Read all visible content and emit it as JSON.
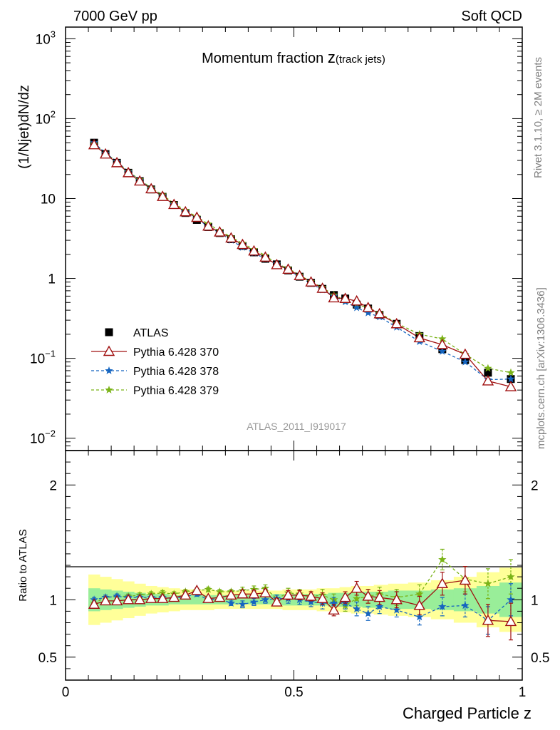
{
  "header": {
    "energy": "7000 GeV pp",
    "category": "Soft QCD"
  },
  "side_labels": {
    "rivet": "Rivet 3.1.10, ≥ 2M events",
    "mcplots": "mcplots.cern.ch [arXiv:1306.3436]"
  },
  "analysis_tag": "ATLAS_2011_I919017",
  "chart_data": [
    {
      "type": "scatter",
      "title_main": "Momentum fraction ",
      "title_z": "z",
      "title_sub": "(track jets)",
      "xlabel": "Charged Particle z",
      "ylabel": "(1/Njet)dN/dz",
      "yscale": "log",
      "xlim": [
        0,
        1
      ],
      "ylim": [
        0.007,
        1400
      ],
      "y_ticks": [
        {
          "label": "10",
          "exp": "−2"
        },
        {
          "label": "10",
          "exp": "−1"
        },
        {
          "label": "1",
          "exp": ""
        },
        {
          "label": "10",
          "exp": ""
        },
        {
          "label": "10",
          "exp": "2"
        },
        {
          "label": "10",
          "exp": "3"
        }
      ],
      "legend_position": "bottom-left",
      "x": [
        0.0625,
        0.0875,
        0.1125,
        0.1375,
        0.1625,
        0.1875,
        0.2125,
        0.2375,
        0.2625,
        0.2875,
        0.3125,
        0.3375,
        0.3625,
        0.3875,
        0.4125,
        0.4375,
        0.4625,
        0.4875,
        0.5125,
        0.5375,
        0.5625,
        0.5875,
        0.6125,
        0.6375,
        0.6625,
        0.6875,
        0.725,
        0.775,
        0.825,
        0.875,
        0.925,
        0.975
      ],
      "series": [
        {
          "name": "ATLAS",
          "color": "#000000",
          "marker": "square",
          "style": "none",
          "values": [
            50,
            36,
            28,
            21,
            16.5,
            13,
            10.5,
            8.3,
            6.6,
            5.4,
            4.4,
            3.7,
            3.1,
            2.55,
            2.12,
            1.76,
            1.5,
            1.26,
            1.05,
            0.88,
            0.74,
            0.62,
            0.56,
            0.47,
            0.42,
            0.35,
            0.27,
            0.19,
            0.13,
            0.095,
            0.066,
            0.055
          ]
        },
        {
          "name": "Pythia 6.428 370",
          "color": "#a01010",
          "marker": "triangle-open",
          "style": "solid",
          "values": [
            47,
            36,
            28,
            21,
            16.5,
            13.2,
            10.6,
            8.4,
            6.8,
            5.8,
            4.5,
            3.8,
            3.2,
            2.65,
            2.2,
            1.84,
            1.48,
            1.3,
            1.08,
            0.9,
            0.75,
            0.57,
            0.56,
            0.52,
            0.43,
            0.36,
            0.27,
            0.18,
            0.148,
            0.112,
            0.052,
            0.044
          ]
        },
        {
          "name": "Pythia 6.428 378",
          "color": "#1565c0",
          "marker": "star",
          "style": "dashed",
          "values": [
            50,
            37,
            29,
            21.5,
            16.8,
            13.3,
            10.7,
            8.4,
            6.8,
            5.7,
            4.4,
            3.75,
            3.0,
            2.45,
            2.08,
            1.76,
            1.52,
            1.28,
            1.05,
            0.86,
            0.72,
            0.6,
            0.51,
            0.43,
            0.37,
            0.33,
            0.245,
            0.162,
            0.122,
            0.09,
            0.054,
            0.055
          ]
        },
        {
          "name": "Pythia 6.428 379",
          "color": "#7ab317",
          "marker": "star",
          "style": "dashed",
          "values": [
            48,
            37,
            29,
            21.8,
            17.2,
            13.6,
            11.1,
            8.7,
            7.1,
            5.9,
            4.8,
            3.95,
            3.3,
            2.75,
            2.3,
            1.94,
            1.52,
            1.34,
            1.1,
            0.91,
            0.77,
            0.62,
            0.53,
            0.47,
            0.43,
            0.37,
            0.275,
            0.2,
            0.175,
            0.112,
            0.075,
            0.066
          ]
        }
      ]
    },
    {
      "type": "scatter",
      "ylabel": "Ratio to ATLAS",
      "xlabel": "Charged Particle z",
      "ylim": [
        0.3,
        2.3
      ],
      "y_ticks": [
        "0.5",
        "1",
        "2"
      ],
      "x_ticks": [
        "0",
        "0.5",
        "1"
      ],
      "band_inner": [
        0.1,
        0.09,
        0.08,
        0.07,
        0.06,
        0.05,
        0.05,
        0.04,
        0.04,
        0.04,
        0.04,
        0.04,
        0.04,
        0.04,
        0.04,
        0.04,
        0.05,
        0.05,
        0.05,
        0.05,
        0.05,
        0.06,
        0.06,
        0.06,
        0.07,
        0.07,
        0.08,
        0.08,
        0.09,
        0.1,
        0.12,
        0.15
      ],
      "band_outer": [
        0.22,
        0.2,
        0.18,
        0.16,
        0.14,
        0.12,
        0.11,
        0.1,
        0.09,
        0.09,
        0.09,
        0.08,
        0.08,
        0.08,
        0.08,
        0.08,
        0.08,
        0.09,
        0.09,
        0.09,
        0.1,
        0.1,
        0.11,
        0.12,
        0.12,
        0.13,
        0.14,
        0.15,
        0.17,
        0.2,
        0.24,
        0.28
      ],
      "series": [
        {
          "name": "Pythia 6.428 370",
          "color": "#a01010",
          "marker": "triangle-open",
          "style": "solid",
          "values": [
            0.96,
            0.99,
            0.99,
            1.0,
            1.0,
            1.01,
            1.01,
            1.02,
            1.04,
            1.08,
            1.01,
            1.02,
            1.04,
            1.05,
            1.05,
            1.06,
            0.98,
            1.04,
            1.04,
            1.03,
            1.01,
            0.91,
            1.02,
            1.1,
            1.03,
            1.02,
            1.0,
            0.95,
            1.14,
            1.17,
            0.82,
            0.81
          ],
          "err": [
            0.02,
            0.02,
            0.02,
            0.02,
            0.02,
            0.02,
            0.02,
            0.02,
            0.02,
            0.02,
            0.02,
            0.02,
            0.02,
            0.03,
            0.03,
            0.03,
            0.03,
            0.04,
            0.04,
            0.04,
            0.05,
            0.05,
            0.05,
            0.06,
            0.06,
            0.06,
            0.07,
            0.08,
            0.1,
            0.12,
            0.14,
            0.16
          ]
        },
        {
          "name": "Pythia 6.428 378",
          "color": "#1565c0",
          "marker": "star",
          "style": "dashed",
          "values": [
            1.0,
            1.02,
            1.03,
            1.02,
            1.02,
            1.02,
            1.02,
            1.01,
            1.03,
            1.05,
            1.0,
            1.01,
            0.97,
            0.96,
            0.98,
            1.0,
            1.01,
            1.01,
            1.0,
            0.98,
            0.97,
            0.97,
            0.97,
            0.92,
            0.88,
            0.94,
            0.91,
            0.85,
            0.94,
            0.95,
            0.82,
            1.0
          ],
          "err": [
            0.02,
            0.02,
            0.02,
            0.02,
            0.02,
            0.02,
            0.02,
            0.02,
            0.02,
            0.02,
            0.02,
            0.02,
            0.02,
            0.03,
            0.03,
            0.03,
            0.03,
            0.04,
            0.04,
            0.04,
            0.05,
            0.05,
            0.05,
            0.06,
            0.06,
            0.06,
            0.06,
            0.07,
            0.08,
            0.1,
            0.12,
            0.14
          ]
        },
        {
          "name": "Pythia 6.428 379",
          "color": "#7ab317",
          "marker": "star",
          "style": "dashed",
          "values": [
            0.97,
            1.02,
            1.03,
            1.03,
            1.04,
            1.05,
            1.06,
            1.05,
            1.07,
            1.08,
            1.09,
            1.07,
            1.07,
            1.08,
            1.09,
            1.1,
            1.01,
            1.06,
            1.05,
            1.03,
            1.04,
            1.0,
            0.95,
            1.01,
            1.03,
            1.05,
            1.02,
            1.05,
            1.35,
            1.18,
            1.14,
            1.2
          ],
          "err": [
            0.02,
            0.02,
            0.02,
            0.02,
            0.02,
            0.02,
            0.02,
            0.02,
            0.02,
            0.02,
            0.02,
            0.02,
            0.02,
            0.03,
            0.03,
            0.03,
            0.03,
            0.04,
            0.04,
            0.04,
            0.05,
            0.05,
            0.05,
            0.06,
            0.06,
            0.06,
            0.07,
            0.08,
            0.09,
            0.11,
            0.13,
            0.15
          ]
        }
      ]
    }
  ]
}
